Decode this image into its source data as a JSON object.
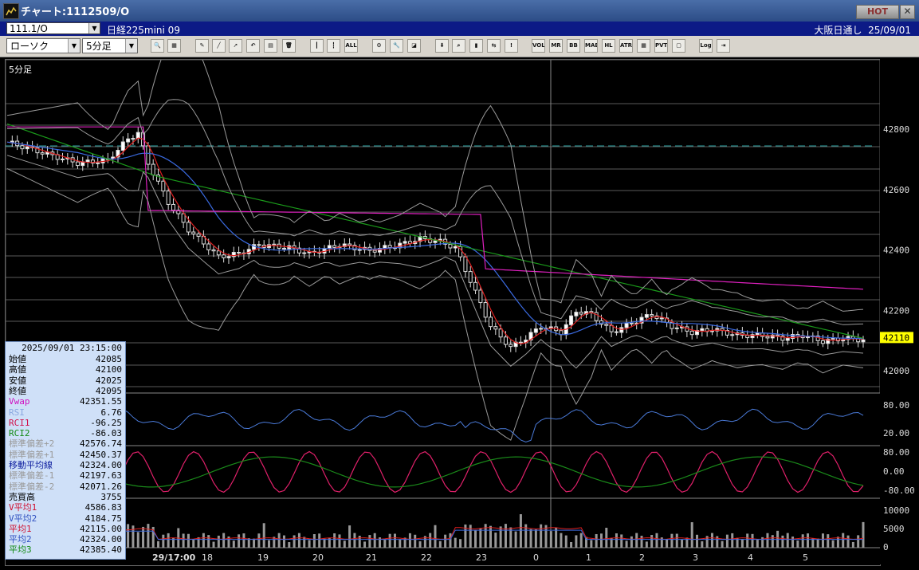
{
  "window": {
    "title": "チャート:1112509/O",
    "hot_label": "HOT",
    "close_label": "✕"
  },
  "infobar": {
    "code": "111.1/O",
    "name": "日経225mini 09",
    "session": "大阪日通し",
    "date": "25/09/01"
  },
  "toolbar": {
    "chart_type": "ローソク",
    "timeframe": "5分足",
    "buttons": [
      {
        "icon": "zoom-icon",
        "label": "🔍"
      },
      {
        "icon": "layout-icon",
        "label": "▦"
      },
      {
        "icon": "pen-icon",
        "label": "✎"
      },
      {
        "icon": "line-draw-icon",
        "label": "╱"
      },
      {
        "icon": "cursor-icon",
        "label": "➚"
      },
      {
        "icon": "undo-icon",
        "label": "↶"
      },
      {
        "icon": "note-icon",
        "label": "▤"
      },
      {
        "icon": "trash-icon",
        "label": "🗑"
      },
      {
        "icon": "candle-icon",
        "label": "┃"
      },
      {
        "icon": "candle-split-icon",
        "label": "┇"
      },
      {
        "icon": "all-icon",
        "label": "ALL"
      },
      {
        "icon": "gear-icon",
        "label": "⚙"
      },
      {
        "icon": "wrench-icon",
        "label": "🔧"
      },
      {
        "icon": "color-icon",
        "label": "◪"
      },
      {
        "icon": "download-icon",
        "label": "⬇"
      },
      {
        "icon": "search-chart-icon",
        "label": "⌕"
      },
      {
        "icon": "bar-chart-icon",
        "label": "▮"
      },
      {
        "icon": "compare-icon",
        "label": "⇆"
      },
      {
        "icon": "info-icon",
        "label": "!"
      },
      {
        "icon": "vol-icon",
        "label": "VOL"
      },
      {
        "icon": "mr-icon",
        "label": "MR"
      },
      {
        "icon": "bb-icon",
        "label": "BB"
      },
      {
        "icon": "mae-icon",
        "label": "MAE"
      },
      {
        "icon": "hl-icon",
        "label": "HL"
      },
      {
        "icon": "atr-icon",
        "label": "ATR"
      },
      {
        "icon": "grid-icon",
        "label": "▦"
      },
      {
        "icon": "pvt-icon",
        "label": "PVT"
      },
      {
        "icon": "window-icon",
        "label": "▢"
      },
      {
        "icon": "log-icon",
        "label": "Log"
      },
      {
        "icon": "export-icon",
        "label": "⇥"
      }
    ]
  },
  "chart": {
    "main_label": "5分足",
    "x_tick_labels": [
      "29/17:00",
      "18",
      "19",
      "20",
      "21",
      "22",
      "23",
      "0",
      "1",
      "2",
      "3",
      "4",
      "5"
    ],
    "price_axis": [
      "42800",
      "42600",
      "42400",
      "42200",
      "42000"
    ],
    "current_price": "42110",
    "osc1_axis": [
      "80.00",
      "20.00"
    ],
    "osc2_axis": [
      "80.00",
      "0.00",
      "-80.00"
    ],
    "volume_axis": [
      "10000",
      "5000",
      "0"
    ],
    "colors": {
      "vwap": "#e020c0",
      "ma_green": "#1a9a1a",
      "ma_blue": "#3a6ae0",
      "ma_red": "#e02020",
      "bands": "#9a9a9a",
      "rsi": "#4a7ad8",
      "rci1": "#e0206a",
      "rci2": "#1a8a1a",
      "price_tag": "#ffff00"
    }
  },
  "panel": {
    "datetime": "2025/09/01 23:15:00",
    "rows": [
      {
        "label": "始値",
        "value": "42085",
        "color": "#000000"
      },
      {
        "label": "高値",
        "value": "42100",
        "color": "#000000"
      },
      {
        "label": "安値",
        "value": "42025",
        "color": "#000000"
      },
      {
        "label": "終値",
        "value": "42095",
        "color": "#000000"
      },
      {
        "label": "Vwap",
        "value": "42351.55",
        "color": "#d010c0"
      },
      {
        "label": "RSI",
        "value": "6.76",
        "color": "#8aa8e0"
      },
      {
        "label": "RCI1",
        "value": "-96.25",
        "color": "#d0104a"
      },
      {
        "label": "RCI2",
        "value": "-86.03",
        "color": "#128a12"
      },
      {
        "label": "標準偏差+2",
        "value": "42576.74",
        "color": "#9a9a9a"
      },
      {
        "label": "標準偏差+1",
        "value": "42450.37",
        "color": "#9a9a9a"
      },
      {
        "label": "移動平均線",
        "value": "42324.00",
        "color": "#1020a0"
      },
      {
        "label": "標準偏差-1",
        "value": "42197.63",
        "color": "#9a9a9a"
      },
      {
        "label": "標準偏差-2",
        "value": "42071.26",
        "color": "#9a9a9a"
      },
      {
        "label": "売買高",
        "value": "3755",
        "color": "#000000"
      },
      {
        "label": "V平均1",
        "value": "4586.83",
        "color": "#d01030"
      },
      {
        "label": "V平均2",
        "value": "4184.75",
        "color": "#3050c0"
      },
      {
        "label": "平均1",
        "value": "42115.00",
        "color": "#d01030"
      },
      {
        "label": "平均2",
        "value": "42324.00",
        "color": "#3050c0"
      },
      {
        "label": "平均3",
        "value": "42385.40",
        "color": "#128a12"
      }
    ]
  }
}
